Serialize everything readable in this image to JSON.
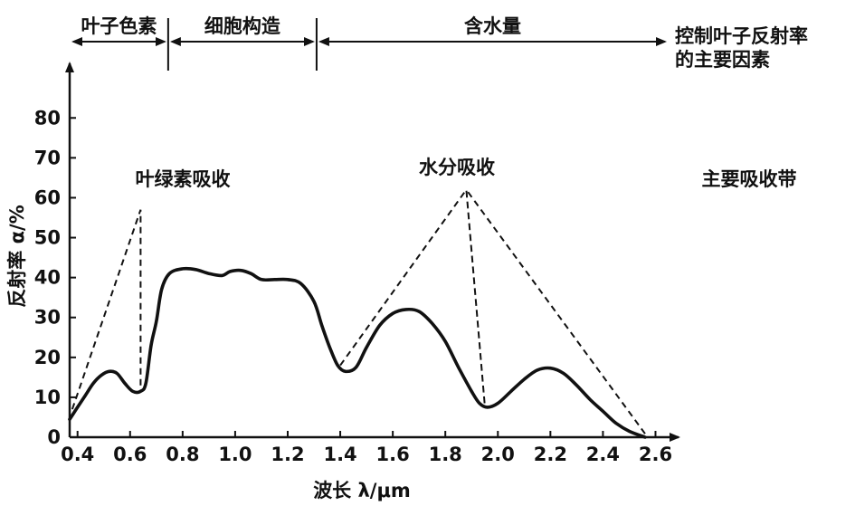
{
  "chart_data": {
    "type": "line",
    "title": "",
    "xlabel": "波长 λ/μm",
    "ylabel": "反射率 α/%",
    "xlim": [
      0.37,
      2.65
    ],
    "ylim": [
      0,
      88
    ],
    "x_ticks": [
      "0.4",
      "0.6",
      "0.8",
      "1.0",
      "1.2",
      "1.4",
      "1.6",
      "1.8",
      "2.0",
      "2.2",
      "2.4",
      "2.6"
    ],
    "y_ticks": [
      "0",
      "10",
      "20",
      "30",
      "40",
      "50",
      "60",
      "70",
      "80"
    ],
    "grid": false,
    "series": [
      {
        "style": "solid",
        "points": [
          [
            0.37,
            4.5
          ],
          [
            0.4,
            7.5
          ],
          [
            0.43,
            10.5
          ],
          [
            0.46,
            13.5
          ],
          [
            0.49,
            15.5
          ],
          [
            0.52,
            16.5
          ],
          [
            0.55,
            16.0
          ],
          [
            0.58,
            13.5
          ],
          [
            0.61,
            11.5
          ],
          [
            0.64,
            11.5
          ],
          [
            0.66,
            13.5
          ],
          [
            0.68,
            23
          ],
          [
            0.7,
            29
          ],
          [
            0.72,
            37
          ],
          [
            0.75,
            41.0
          ],
          [
            0.8,
            42.2
          ],
          [
            0.85,
            42.0
          ],
          [
            0.9,
            41.0
          ],
          [
            0.95,
            40.5
          ],
          [
            0.98,
            41.5
          ],
          [
            1.02,
            41.8
          ],
          [
            1.06,
            41.0
          ],
          [
            1.1,
            39.5
          ],
          [
            1.15,
            39.5
          ],
          [
            1.2,
            39.5
          ],
          [
            1.25,
            38.5
          ],
          [
            1.3,
            34.0
          ],
          [
            1.33,
            28.0
          ],
          [
            1.36,
            22.5
          ],
          [
            1.39,
            18.0
          ],
          [
            1.42,
            16.5
          ],
          [
            1.46,
            17.5
          ],
          [
            1.5,
            22.5
          ],
          [
            1.55,
            28.0
          ],
          [
            1.6,
            31.0
          ],
          [
            1.65,
            32.0
          ],
          [
            1.7,
            31.5
          ],
          [
            1.75,
            28.5
          ],
          [
            1.8,
            24.0
          ],
          [
            1.85,
            17.5
          ],
          [
            1.9,
            11.5
          ],
          [
            1.93,
            8.5
          ],
          [
            1.96,
            7.5
          ],
          [
            2.0,
            8.5
          ],
          [
            2.05,
            11.5
          ],
          [
            2.1,
            14.5
          ],
          [
            2.15,
            16.8
          ],
          [
            2.2,
            17.3
          ],
          [
            2.25,
            16.0
          ],
          [
            2.3,
            13.0
          ],
          [
            2.35,
            9.5
          ],
          [
            2.4,
            6.5
          ],
          [
            2.45,
            3.5
          ],
          [
            2.5,
            1.5
          ],
          [
            2.56,
            0.0
          ]
        ]
      },
      {
        "style": "dashed",
        "points": [
          [
            0.38,
            7
          ],
          [
            0.64,
            57
          ],
          [
            0.64,
            11.5
          ]
        ]
      },
      {
        "style": "dashed",
        "points": [
          [
            1.4,
            18
          ],
          [
            1.88,
            62
          ],
          [
            1.95,
            8
          ],
          [
            1.88,
            62
          ],
          [
            2.57,
            0
          ]
        ]
      }
    ],
    "zones": [
      {
        "label": "叶子色素",
        "x_start": 0.37,
        "x_end": 0.745
      },
      {
        "label": "细胞构造",
        "x_start": 0.745,
        "x_end": 1.31
      },
      {
        "label": "含水量",
        "x_start": 1.31,
        "x_end": 2.65
      }
    ],
    "zone_caption_line1": "控制叶子反射率",
    "zone_caption_line2": "的主要因素",
    "annotations": [
      {
        "text": "叶绿素吸收"
      },
      {
        "text": "水分吸收"
      },
      {
        "text": "主要吸收带"
      }
    ]
  }
}
